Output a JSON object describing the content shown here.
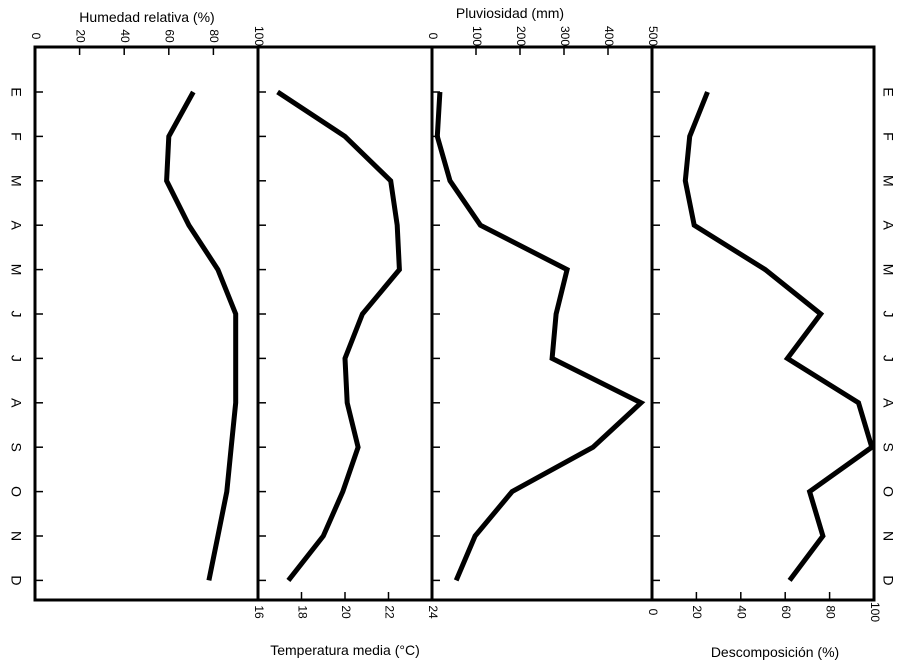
{
  "chart_data": [
    {
      "type": "line",
      "title": "",
      "xlabel": "Humedad relativa (%)",
      "axis_position": "top",
      "xlim": [
        0,
        100
      ],
      "ticks": [
        "0",
        "20",
        "40",
        "60",
        "80",
        "100"
      ],
      "categories": [
        "E",
        "F",
        "M",
        "A",
        "M",
        "J",
        "J",
        "A",
        "S",
        "O",
        "N",
        "D"
      ],
      "values": [
        71,
        60,
        59,
        69,
        82,
        90,
        90,
        90,
        88,
        86,
        82,
        78
      ]
    },
    {
      "type": "line",
      "title": "",
      "xlabel": "Temperatura media (°C)",
      "axis_position": "bottom",
      "xlim": [
        16,
        24
      ],
      "ticks": [
        "16",
        "18",
        "20",
        "22",
        "24"
      ],
      "categories": [
        "E",
        "F",
        "M",
        "A",
        "M",
        "J",
        "J",
        "A",
        "S",
        "O",
        "N",
        "D"
      ],
      "values": [
        16.9,
        20.0,
        22.1,
        22.4,
        22.5,
        20.8,
        20.0,
        20.1,
        20.6,
        19.9,
        19.0,
        17.4
      ]
    },
    {
      "type": "line",
      "title": "",
      "xlabel": "Pluviosidad (mm)",
      "axis_position": "top",
      "xlim": [
        0,
        500
      ],
      "ticks": [
        "0",
        "100",
        "200",
        "300",
        "400",
        "500"
      ],
      "categories": [
        "E",
        "F",
        "M",
        "A",
        "M",
        "J",
        "J",
        "A",
        "S",
        "O",
        "N",
        "D"
      ],
      "values": [
        18,
        12,
        41,
        110,
        307,
        282,
        273,
        475,
        366,
        182,
        98,
        55
      ]
    },
    {
      "type": "line",
      "title": "",
      "xlabel": "Descomposición (%)",
      "axis_position": "bottom",
      "xlim": [
        0,
        100
      ],
      "ticks": [
        "0",
        "20",
        "40",
        "60",
        "80",
        "100"
      ],
      "categories": [
        "E",
        "F",
        "M",
        "A",
        "M",
        "J",
        "J",
        "A",
        "S",
        "O",
        "N",
        "D"
      ],
      "values": [
        25,
        17,
        15,
        19,
        51,
        76,
        61,
        93,
        99,
        71,
        77,
        62
      ]
    }
  ],
  "months": [
    "E",
    "F",
    "M",
    "A",
    "M",
    "J",
    "J",
    "A",
    "S",
    "O",
    "N",
    "D"
  ],
  "colors": {
    "line": "#000000",
    "background": "#ffffff"
  }
}
